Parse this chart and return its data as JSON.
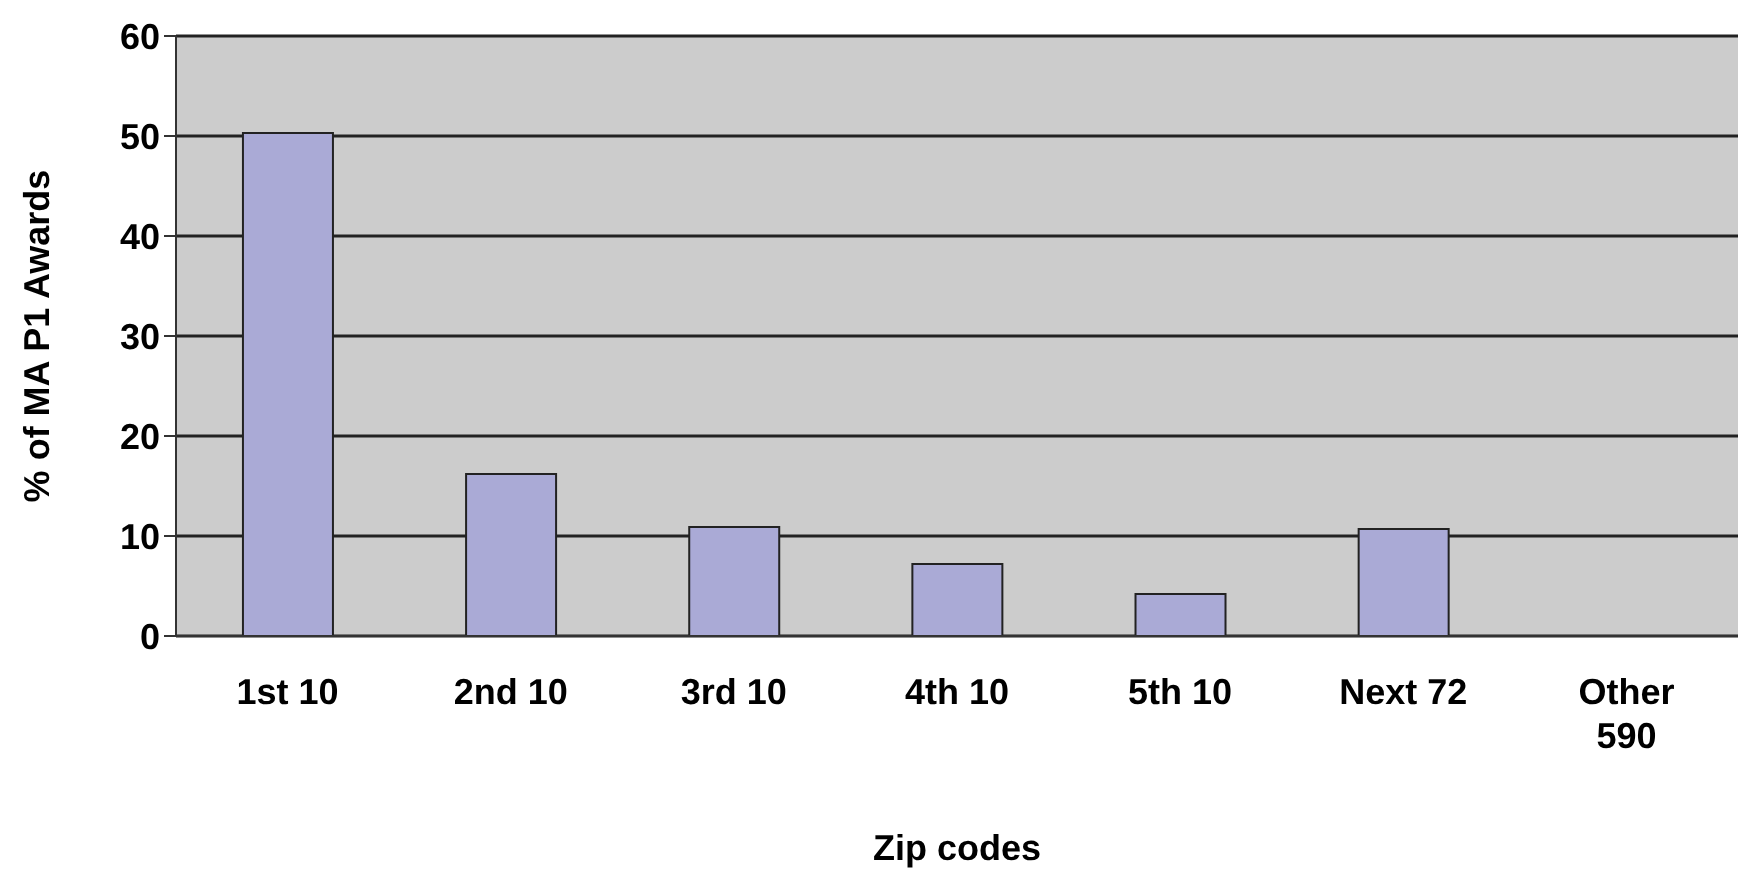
{
  "chart_data": {
    "type": "bar",
    "xlabel": "Zip codes",
    "ylabel": "% of MA P1 Awards",
    "categories": [
      "1st 10",
      "2nd 10",
      "3rd 10",
      "4th 10",
      "5th 10",
      "Next 72",
      "Other 590"
    ],
    "values": [
      50.3,
      16.2,
      10.9,
      7.2,
      4.2,
      10.7,
      0
    ],
    "color": "#aaaad6",
    "ylim": [
      0,
      60
    ],
    "yticks": [
      0,
      10,
      20,
      30,
      40,
      50,
      60
    ],
    "grid": "y"
  }
}
